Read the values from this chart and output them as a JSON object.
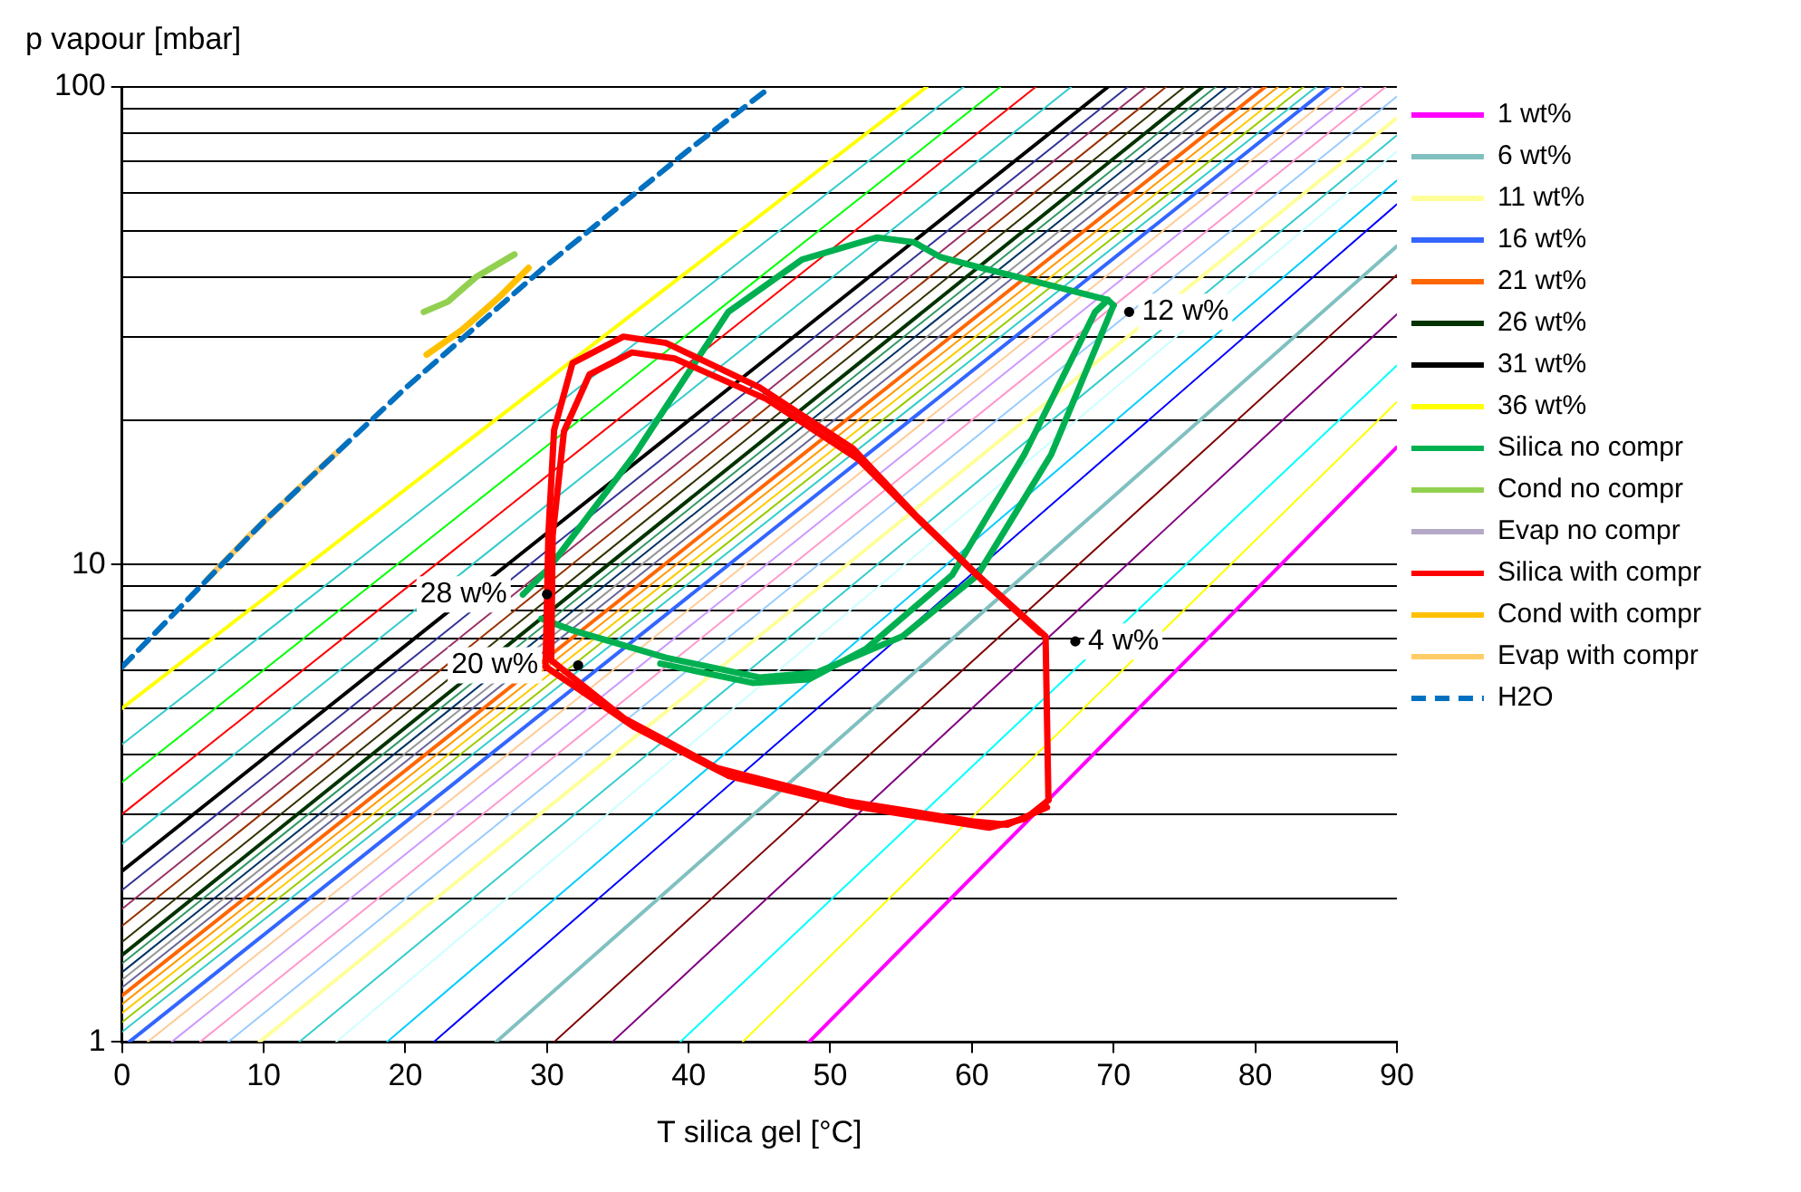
{
  "chart_data": {
    "type": "line",
    "xlabel": "T silica gel [°C]",
    "ylabel": "p vapour [mbar]",
    "xlim": [
      0,
      90
    ],
    "ylim": [
      1,
      100
    ],
    "xticks": [
      0,
      10,
      20,
      30,
      40,
      50,
      60,
      70,
      80,
      90
    ],
    "yticks": [
      1,
      {
        "value": 2,
        "label": null
      },
      {
        "value": 3,
        "label": null
      },
      {
        "value": 4,
        "label": null
      },
      {
        "value": 5,
        "label": null
      },
      {
        "value": 6,
        "label": null
      },
      {
        "value": 7,
        "label": null
      },
      {
        "value": 8,
        "label": null
      },
      {
        "value": 9,
        "label": null
      },
      10,
      {
        "value": 20,
        "label": null
      },
      {
        "value": 30,
        "label": null
      },
      {
        "value": 40,
        "label": null
      },
      {
        "value": 50,
        "label": null
      },
      {
        "value": 60,
        "label": null
      },
      {
        "value": 70,
        "label": null
      },
      {
        "value": 80,
        "label": null
      },
      {
        "value": 90,
        "label": null
      },
      100
    ],
    "log": "y",
    "grid": "y",
    "legend": "right",
    "marker": "none",
    "series": [
      {
        "name": "1 wt%",
        "color": "#ff00ff",
        "x": [
          48.5,
          90
        ],
        "values": [
          1,
          17.6
        ]
      },
      {
        "color": "#ffff00",
        "x": [
          43.8,
          90
        ],
        "values": [
          1,
          21.9
        ]
      },
      {
        "color": "#00ffff",
        "x": [
          39.4,
          90
        ],
        "values": [
          1,
          26.1
        ]
      },
      {
        "color": "#800080",
        "x": [
          34.6,
          90
        ],
        "values": [
          1,
          33.4
        ]
      },
      {
        "color": "#800000",
        "x": [
          30.5,
          90
        ],
        "values": [
          1,
          40.4
        ]
      },
      {
        "name": "6 wt%",
        "color": "#80c0c0",
        "x": [
          26.4,
          90
        ],
        "values": [
          1,
          46.4
        ]
      },
      {
        "color": "#0000ff",
        "x": [
          22,
          90
        ],
        "values": [
          1,
          56.8
        ]
      },
      {
        "color": "#00ccff",
        "x": [
          18.7,
          90
        ],
        "values": [
          1,
          63.7
        ]
      },
      {
        "color": "#ccffff",
        "x": [
          15.1,
          90
        ],
        "values": [
          1,
          73.3
        ]
      },
      {
        "color": "#33cccc",
        "x": [
          12.5,
          90
        ],
        "values": [
          1,
          79.2
        ]
      },
      {
        "name": "11 wt%",
        "color": "#ffff99",
        "x": [
          9.7,
          90
        ],
        "values": [
          1,
          86.1
        ]
      },
      {
        "color": "#99ccff",
        "x": [
          7.5,
          90
        ],
        "values": [
          1,
          95.5
        ]
      },
      {
        "color": "#ff99cc",
        "x": [
          5.5,
          89.2
        ],
        "values": [
          1,
          100
        ]
      },
      {
        "color": "#cc99ff",
        "x": [
          3.5,
          87.5
        ],
        "values": [
          1,
          100
        ]
      },
      {
        "color": "#ffcc99",
        "x": [
          1.8,
          86.2
        ],
        "values": [
          1,
          100
        ]
      },
      {
        "name": "16 wt%",
        "color": "#3366ff",
        "x": [
          0.5,
          85.2
        ],
        "values": [
          1,
          100
        ]
      },
      {
        "color": "#33cccc",
        "x": [
          0,
          84.3
        ],
        "values": [
          1.05,
          100
        ]
      },
      {
        "color": "#99cc00",
        "x": [
          0,
          83.4
        ],
        "values": [
          1.1,
          100
        ]
      },
      {
        "color": "#ffcc00",
        "x": [
          0,
          82.5
        ],
        "values": [
          1.15,
          100
        ]
      },
      {
        "color": "#ff9900",
        "x": [
          0,
          81.6
        ],
        "values": [
          1.2,
          100
        ]
      },
      {
        "name": "21 wt%",
        "color": "#ff6600",
        "x": [
          0,
          80.7
        ],
        "values": [
          1.25,
          100
        ]
      },
      {
        "color": "#666699",
        "x": [
          0,
          79.8
        ],
        "values": [
          1.3,
          100
        ]
      },
      {
        "color": "#969696",
        "x": [
          0,
          78.9
        ],
        "values": [
          1.35,
          100
        ]
      },
      {
        "color": "#003366",
        "x": [
          0,
          78
        ],
        "values": [
          1.4,
          100
        ]
      },
      {
        "color": "#339966",
        "x": [
          0,
          77.2
        ],
        "values": [
          1.46,
          100
        ]
      },
      {
        "name": "26 wt%",
        "color": "#003300",
        "x": [
          0,
          76.3
        ],
        "values": [
          1.52,
          100
        ]
      },
      {
        "color": "#333300",
        "x": [
          0,
          75
        ],
        "values": [
          1.62,
          100
        ]
      },
      {
        "color": "#993300",
        "x": [
          0,
          73.7
        ],
        "values": [
          1.75,
          100
        ]
      },
      {
        "color": "#993366",
        "x": [
          0,
          72.3
        ],
        "values": [
          1.9,
          100
        ]
      },
      {
        "color": "#333399",
        "x": [
          0,
          71
        ],
        "values": [
          2.08,
          100
        ]
      },
      {
        "name": "31 wt%",
        "color": "#000000",
        "x": [
          0,
          69.6
        ],
        "values": [
          2.28,
          100
        ]
      },
      {
        "color": "#33cccc",
        "x": [
          0,
          67
        ],
        "values": [
          2.6,
          100
        ]
      },
      {
        "color": "#ff0000",
        "x": [
          0,
          64.5
        ],
        "values": [
          3.0,
          100
        ]
      },
      {
        "color": "#00ff00",
        "x": [
          0,
          62
        ],
        "values": [
          3.5,
          100
        ]
      },
      {
        "color": "#33cccc",
        "x": [
          0,
          59.4
        ],
        "values": [
          4.2,
          100
        ]
      },
      {
        "name": "36 wt%",
        "color": "#ffff00",
        "x": [
          0,
          56.8
        ],
        "values": [
          5.0,
          100
        ]
      },
      {
        "name": "Silica no compr",
        "color": "#00b050",
        "x": [
          28.3,
          30.1,
          36.2,
          42.8,
          48,
          53.3,
          55.9,
          57.8,
          60.4,
          69.6,
          70
        ],
        "values": [
          8.65,
          9.8,
          17,
          33.8,
          43.5,
          48.4,
          47.3,
          44,
          42,
          35.8,
          34.9
        ]
      },
      {
        "color": "#00b050",
        "x": [
          70,
          65.6,
          60.4,
          55.1,
          49,
          45,
          38.4,
          31.8,
          29.6
        ],
        "values": [
          34.9,
          17,
          9.5,
          7.07,
          5.93,
          5.8,
          6.38,
          7.28,
          7.7
        ]
      },
      {
        "color": "#00b050",
        "x": [
          69.6,
          68.7,
          63.7,
          58.6,
          52.5,
          48.5,
          44.5,
          38
        ],
        "values": [
          35.8,
          33.8,
          17,
          9.5,
          6.65,
          5.75,
          5.65,
          6.2
        ]
      },
      {
        "name": "Cond no compr",
        "color": "#92d050",
        "x": [
          21.3,
          23,
          25,
          27.7
        ],
        "values": [
          33.8,
          35.5,
          40,
          44.6
        ]
      },
      {
        "name": "Evap no compr",
        "color": "#b4aac8"
      },
      {
        "name": "Silica with compr",
        "color": "#ff0000",
        "x": [
          29.9,
          30.1,
          30.5,
          31.8,
          35.4,
          38.4,
          45,
          51.6,
          56,
          60.4,
          65.2,
          65.4
        ],
        "values": [
          6.11,
          11.6,
          19.1,
          26.4,
          30,
          29.1,
          23.5,
          17.5,
          12.7,
          9.5,
          7.07,
          3.21
        ]
      },
      {
        "color": "#ff0000",
        "x": [
          65.4,
          63.8,
          61.2,
          51.6,
          42.8,
          36.2,
          29.9
        ],
        "values": [
          3.21,
          2.94,
          2.81,
          3.12,
          3.61,
          4.56,
          6.11
        ]
      },
      {
        "color": "#ff0000",
        "x": [
          30.3,
          30.4,
          31.2,
          33,
          36,
          39,
          45.5,
          52,
          56.5,
          61,
          64.8
        ],
        "values": [
          6.3,
          11.5,
          19,
          25,
          27.8,
          27,
          22.2,
          16.6,
          12.2,
          9.1,
          7.2
        ]
      },
      {
        "color": "#ff0000",
        "x": [
          65.3,
          62.5,
          60,
          51,
          42,
          35.5,
          30.3
        ],
        "values": [
          3.1,
          2.85,
          2.9,
          3.2,
          3.75,
          4.75,
          6.3
        ]
      },
      {
        "name": "Cond with compr",
        "color": "#ffc000",
        "x": [
          21.5,
          24,
          26.5,
          28.7
        ],
        "values": [
          27.5,
          31,
          36,
          41.8
        ]
      },
      {
        "name": "Evap with compr",
        "color": "#ffcc66",
        "x": [
          6,
          9,
          12,
          15.2
        ],
        "values": [
          9.3,
          11.5,
          14,
          17.2
        ]
      },
      {
        "name": "H2O",
        "color": "#0070c0",
        "line_style": "dashed",
        "x": [
          0,
          10,
          20,
          30,
          40,
          45.8
        ],
        "values": [
          6.1,
          12.3,
          23.4,
          42.4,
          73.8,
          100
        ]
      }
    ],
    "annotations": [
      {
        "text": "12 w%",
        "x": 71.1,
        "y": 33.8
      },
      {
        "text": "4 w%",
        "x": 67.3,
        "y": 6.9
      },
      {
        "text": "28 w%",
        "x": 30,
        "y": 8.66
      },
      {
        "text": "20 w%",
        "x": 32.2,
        "y": 6.15
      }
    ]
  }
}
